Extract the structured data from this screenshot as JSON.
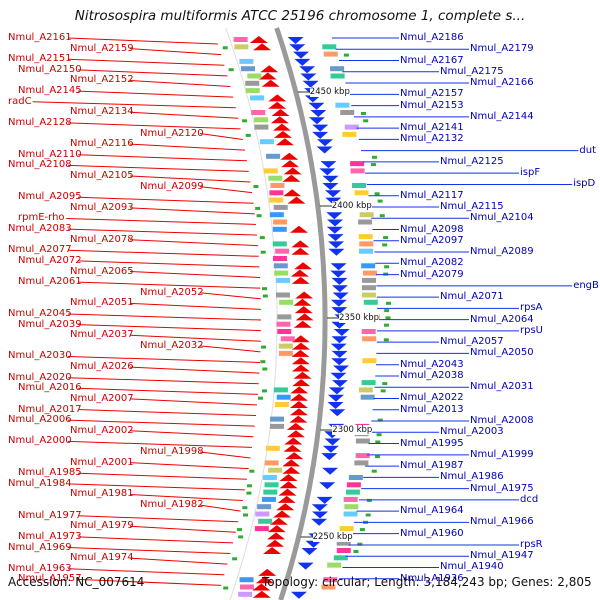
{
  "title": "Nitrosospira multiformis ATCC 25196 chromosome 1, complete s...",
  "footer": {
    "accession": "Accession: NC_007614",
    "topology": "Topology: circular; Length: 3,184,243 bp; Genes: 2,805"
  },
  "colors": {
    "forward": "#ee0000",
    "reverse": "#1133ee",
    "backbone": "#9a9a9a",
    "left_label": "#cc0000",
    "right_label": "#0000bb"
  },
  "kbp_labels": [
    "2450 kbp",
    "2400 kbp",
    "2350 kbp",
    "2300 kbp",
    "2250 kbp"
  ],
  "left_labels": [
    "Nmul_A2161",
    "Nmul_A2159",
    "Nmul_A2151",
    "Nmul_A2150",
    "Nmul_A2152",
    "Nmul_A2145",
    "radC",
    "Nmul_A2134",
    "Nmul_A2128",
    "Nmul_A2120",
    "Nmul_A2116",
    "Nmul_A2110",
    "Nmul_A2108",
    "Nmul_A2105",
    "Nmul_A2099",
    "Nmul_A2095",
    "Nmul_A2093",
    "rpmE-rho",
    "Nmul_A2083",
    "Nmul_A2078",
    "Nmul_A2077",
    "Nmul_A2072",
    "Nmul_A2065",
    "Nmul_A2061",
    "Nmul_A2052",
    "Nmul_A2051",
    "Nmul_A2045",
    "Nmul_A2039",
    "Nmul_A2037",
    "Nmul_A2032",
    "Nmul_A2030",
    "Nmul_A2026",
    "Nmul_A2020",
    "Nmul_A2016",
    "Nmul_A2007",
    "Nmul_A2017",
    "Nmul_A2006",
    "Nmul_A2002",
    "Nmul_A2000",
    "Nmul_A1998",
    "Nmul_A2001",
    "Nmul_A1985",
    "Nmul_A1984",
    "Nmul_A1981",
    "Nmul_A1982",
    "Nmul_A1977",
    "Nmul_A1979",
    "Nmul_A1973",
    "Nmul_A1969",
    "Nmul_A1974",
    "Nmul_A1963",
    "Nmul_A1957"
  ],
  "right_labels": [
    "Nmul_A2186",
    "Nmul_A2179",
    "Nmul_A2167",
    "Nmul_A2175",
    "Nmul_A2166",
    "Nmul_A2157",
    "Nmul_A2153",
    "Nmul_A2144",
    "Nmul_A2141",
    "Nmul_A2132",
    "dut",
    "Nmul_A2125",
    "ispF",
    "ispD",
    "Nmul_A2117",
    "Nmul_A2115",
    "Nmul_A2104",
    "Nmul_A2098",
    "Nmul_A2097",
    "Nmul_A2089",
    "Nmul_A2082",
    "Nmul_A2079",
    "engB",
    "Nmul_A2071",
    "rpsA",
    "Nmul_A2064",
    "rpsU",
    "Nmul_A2057",
    "Nmul_A2050",
    "Nmul_A2043",
    "Nmul_A2038",
    "Nmul_A2031",
    "Nmul_A2022",
    "Nmul_A2013",
    "Nmul_A2008",
    "Nmul_A2003",
    "Nmul_A1995",
    "Nmul_A1999",
    "Nmul_A1987",
    "Nmul_A1986",
    "Nmul_A1975",
    "dcd",
    "Nmul_A1964",
    "Nmul_A1966",
    "Nmul_A1960",
    "rpsR",
    "Nmul_A1947",
    "Nmul_A1940",
    "Nmul_A1936"
  ]
}
